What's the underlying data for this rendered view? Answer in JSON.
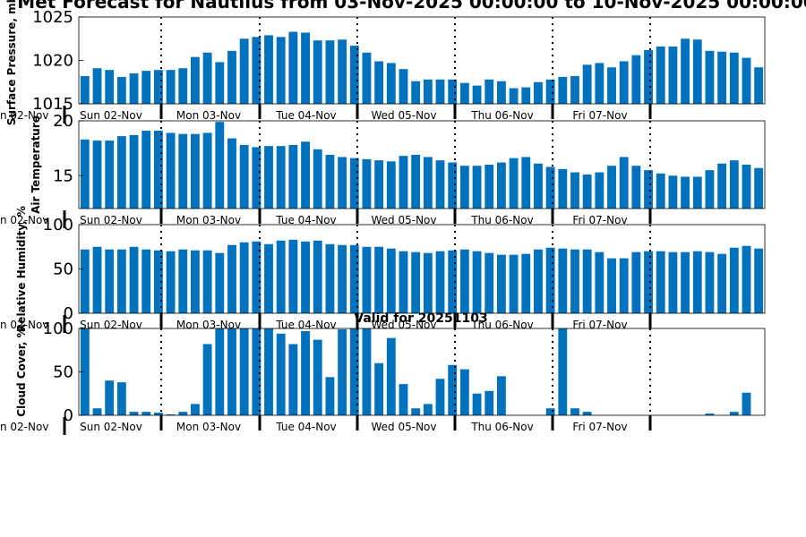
{
  "figure": {
    "title": "Met Forecast for Nautilus from 03-Nov-2025 00:00:00 to 10-Nov-2025 00:00:00",
    "subtitle": "Valid for 20251103",
    "bar_color": "#0072bd",
    "day_labels": [
      "Sun 02-Nov",
      "Mon 03-Nov",
      "Tue 04-Nov",
      "Wed 05-Nov",
      "Thu 06-Nov",
      "Fri 07-Nov"
    ],
    "edge_label": "n 02-Nov"
  },
  "chart_data": [
    {
      "type": "bar",
      "ylabel": "Surface Pressure, mb",
      "ylim": [
        1015,
        1025
      ],
      "yticks": [
        1015,
        1020,
        1025
      ],
      "grid": false,
      "values": [
        1018.2,
        1019.1,
        1018.9,
        1018.1,
        1018.5,
        1018.8,
        1018.9,
        1018.9,
        1019.1,
        1020.4,
        1020.9,
        1019.8,
        1021.1,
        1022.5,
        1022.7,
        1022.9,
        1022.7,
        1023.3,
        1023.2,
        1022.3,
        1022.3,
        1022.4,
        1021.7,
        1020.9,
        1019.9,
        1019.7,
        1019.0,
        1017.6,
        1017.8,
        1017.8,
        1017.8,
        1017.4,
        1017.1,
        1017.8,
        1017.6,
        1016.8,
        1016.9,
        1017.5,
        1017.8,
        1018.1,
        1018.2,
        1019.5,
        1019.7,
        1019.2,
        1019.9,
        1020.6,
        1021.2,
        1021.6,
        1021.6,
        1022.5,
        1022.4,
        1021.1,
        1021.0,
        1020.9,
        1020.3,
        1019.2
      ]
    },
    {
      "type": "bar",
      "ylabel": "Air Temperature",
      "ylim": [
        12,
        20
      ],
      "yticks": [
        15,
        20
      ],
      "grid": false,
      "values": [
        18.3,
        18.2,
        18.2,
        18.6,
        18.7,
        19.1,
        19.1,
        18.9,
        18.8,
        18.8,
        18.9,
        19.9,
        18.4,
        17.8,
        17.6,
        17.7,
        17.7,
        17.8,
        18.1,
        17.4,
        16.9,
        16.7,
        16.6,
        16.5,
        16.4,
        16.3,
        16.8,
        16.9,
        16.7,
        16.4,
        16.2,
        15.9,
        15.9,
        16.0,
        16.2,
        16.6,
        16.7,
        16.1,
        15.8,
        15.6,
        15.3,
        15.1,
        15.3,
        15.9,
        16.7,
        15.9,
        15.5,
        15.2,
        15.0,
        14.9,
        14.9,
        15.5,
        16.1,
        16.4,
        16.0,
        15.7
      ]
    },
    {
      "type": "bar",
      "ylabel": "Relative Humidity, %",
      "ylim": [
        0,
        100
      ],
      "yticks": [
        0,
        50,
        100
      ],
      "grid": false,
      "values": [
        72,
        75,
        72,
        72,
        75,
        72,
        71,
        70,
        72,
        71,
        71,
        68,
        77,
        80,
        81,
        78,
        82,
        83,
        81,
        82,
        78,
        77,
        77,
        75,
        75,
        73,
        70,
        69,
        68,
        70,
        71,
        72,
        70,
        68,
        66,
        66,
        67,
        72,
        74,
        73,
        72,
        72,
        69,
        62,
        62,
        69,
        70,
        70,
        69,
        69,
        70,
        69,
        67,
        74,
        76,
        73
      ]
    },
    {
      "type": "bar",
      "ylabel": "Cloud Cover, %",
      "ylim": [
        0,
        100
      ],
      "yticks": [
        0,
        50,
        100
      ],
      "grid": false,
      "values": [
        100,
        8,
        40,
        38,
        4,
        4,
        3,
        1,
        4,
        13,
        82,
        100,
        100,
        100,
        100,
        100,
        94,
        82,
        97,
        87,
        44,
        99,
        100,
        100,
        60,
        89,
        36,
        8,
        13,
        42,
        58,
        53,
        25,
        28,
        45,
        0,
        0,
        0,
        8,
        100,
        8,
        4,
        0,
        0,
        0,
        0,
        0,
        0,
        0,
        0,
        0,
        2,
        0,
        4,
        26,
        0
      ]
    }
  ]
}
